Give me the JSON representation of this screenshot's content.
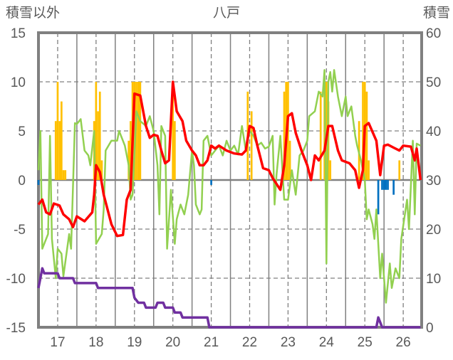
{
  "chart_data": {
    "type": "bar+line",
    "title": "八戸",
    "ylabel_left": "積雪以外",
    "ylabel_right": "積雪",
    "ylim_left": [
      -15,
      15
    ],
    "ylim_right": [
      0,
      60
    ],
    "xlim": [
      16.5,
      26.48
    ],
    "yticks_left": [
      "15",
      "10",
      "5",
      "0",
      "-5",
      "-10",
      "-15"
    ],
    "yticks_right": [
      "60",
      "50",
      "40",
      "30",
      "20",
      "10",
      "0"
    ],
    "xticks": [
      "17",
      "18",
      "19",
      "20",
      "21",
      "22",
      "23",
      "24",
      "25",
      "26"
    ],
    "colors": {
      "red": "#ff0000",
      "green": "#92d050",
      "orange": "#ffc000",
      "blue": "#0070c0",
      "purple": "#7030a0",
      "frame": "#808080"
    },
    "series": [
      {
        "name": "orange-bars",
        "axis": "left",
        "type": "bar",
        "color": "#ffc000",
        "points": [
          [
            16.95,
            6
          ],
          [
            17.0,
            10
          ],
          [
            17.05,
            6
          ],
          [
            17.1,
            8
          ],
          [
            17.15,
            1
          ],
          [
            17.2,
            1
          ],
          [
            17.95,
            6
          ],
          [
            18.0,
            10
          ],
          [
            18.05,
            7
          ],
          [
            18.1,
            9
          ],
          [
            18.15,
            2
          ],
          [
            18.85,
            4
          ],
          [
            18.9,
            6
          ],
          [
            18.95,
            10
          ],
          [
            19.0,
            10
          ],
          [
            19.05,
            10
          ],
          [
            19.1,
            10
          ],
          [
            19.15,
            10
          ],
          [
            20.0,
            10
          ],
          [
            20.05,
            6
          ],
          [
            21.95,
            9
          ],
          [
            22.05,
            7
          ],
          [
            22.9,
            9
          ],
          [
            22.95,
            10
          ],
          [
            23.0,
            10
          ],
          [
            23.05,
            4
          ],
          [
            23.85,
            9
          ],
          [
            23.95,
            10
          ],
          [
            24.0,
            10
          ],
          [
            24.05,
            8
          ],
          [
            24.1,
            2
          ],
          [
            24.85,
            6
          ],
          [
            24.95,
            10
          ],
          [
            25.0,
            10
          ],
          [
            25.05,
            9
          ],
          [
            25.1,
            2
          ],
          [
            25.9,
            2
          ]
        ]
      },
      {
        "name": "blue-bars",
        "axis": "left",
        "type": "bar",
        "color": "#0070c0",
        "points": [
          [
            16.5,
            -0.5
          ],
          [
            21.0,
            -0.5
          ],
          [
            25.35,
            -3.5
          ],
          [
            25.45,
            -1
          ],
          [
            25.5,
            -1
          ],
          [
            25.55,
            -1
          ],
          [
            25.6,
            -1
          ],
          [
            25.75,
            -1.5
          ]
        ]
      },
      {
        "name": "green-line",
        "axis": "left",
        "type": "line",
        "color": "#92d050",
        "points": [
          [
            16.5,
            1
          ],
          [
            16.55,
            5
          ],
          [
            16.6,
            -7
          ],
          [
            16.7,
            -6
          ],
          [
            16.75,
            -5.5
          ],
          [
            16.8,
            4.5
          ],
          [
            16.85,
            -6
          ],
          [
            16.95,
            -10
          ],
          [
            17.0,
            -7
          ],
          [
            17.1,
            -7.5
          ],
          [
            17.15,
            -9.8
          ],
          [
            17.3,
            -5.5
          ],
          [
            17.35,
            -7
          ],
          [
            17.45,
            5.8
          ],
          [
            17.5,
            5.7
          ],
          [
            17.6,
            6.2
          ],
          [
            17.7,
            3
          ],
          [
            17.8,
            2.5
          ],
          [
            17.85,
            1.5
          ],
          [
            17.95,
            5
          ],
          [
            18.0,
            -6.5
          ],
          [
            18.15,
            -5.5
          ],
          [
            18.2,
            -3
          ],
          [
            18.25,
            3
          ],
          [
            18.4,
            4
          ],
          [
            18.55,
            4
          ],
          [
            18.6,
            5
          ],
          [
            18.75,
            3.5
          ],
          [
            18.85,
            1.5
          ],
          [
            18.9,
            -2
          ],
          [
            18.95,
            -1.5
          ],
          [
            19.05,
            7
          ],
          [
            19.15,
            6
          ],
          [
            19.3,
            5.5
          ],
          [
            19.4,
            6.5
          ],
          [
            19.5,
            5
          ],
          [
            19.6,
            1.5
          ],
          [
            19.65,
            -3.5
          ],
          [
            19.7,
            5.5
          ],
          [
            19.8,
            4.5
          ],
          [
            19.85,
            -7
          ],
          [
            19.95,
            -1
          ],
          [
            20.05,
            -6.5
          ],
          [
            20.1,
            -4
          ],
          [
            20.2,
            -2.5
          ],
          [
            20.3,
            -3.5
          ],
          [
            20.4,
            -1.5
          ],
          [
            20.5,
            3
          ],
          [
            20.55,
            1.5
          ],
          [
            20.6,
            -2.5
          ],
          [
            20.7,
            -3.5
          ],
          [
            20.75,
            -3
          ],
          [
            20.8,
            4
          ],
          [
            20.9,
            4.5
          ],
          [
            21.0,
            2.5
          ],
          [
            21.1,
            3
          ],
          [
            21.2,
            3.5
          ],
          [
            21.3,
            2.5
          ],
          [
            21.4,
            4
          ],
          [
            21.5,
            3
          ],
          [
            21.6,
            3.5
          ],
          [
            21.7,
            2.6
          ],
          [
            21.8,
            5.5
          ],
          [
            21.9,
            3
          ],
          [
            22.0,
            5
          ],
          [
            22.1,
            4.5
          ],
          [
            22.2,
            3.5
          ],
          [
            22.3,
            3.8
          ],
          [
            22.4,
            3.2
          ],
          [
            22.5,
            3.4
          ],
          [
            22.6,
            4.5
          ],
          [
            22.65,
            -2.5
          ],
          [
            22.7,
            0.5
          ],
          [
            22.8,
            4.5
          ],
          [
            22.9,
            -2
          ],
          [
            23.0,
            -2
          ],
          [
            23.1,
            1
          ],
          [
            23.2,
            -1.5
          ],
          [
            23.3,
            2.5
          ],
          [
            23.4,
            3
          ],
          [
            23.5,
            4
          ],
          [
            23.55,
            6.5
          ],
          [
            23.7,
            7
          ],
          [
            23.8,
            9
          ],
          [
            23.9,
            8.5
          ],
          [
            23.95,
            11.2
          ],
          [
            24.0,
            -8.5
          ],
          [
            24.05,
            10
          ],
          [
            24.1,
            11
          ],
          [
            24.15,
            9
          ],
          [
            24.2,
            11.2
          ],
          [
            24.3,
            8.5
          ],
          [
            24.4,
            6.5
          ],
          [
            24.5,
            8.5
          ],
          [
            24.55,
            6.5
          ],
          [
            24.65,
            7.5
          ],
          [
            24.75,
            4.5
          ],
          [
            24.8,
            3.5
          ],
          [
            24.9,
            2
          ],
          [
            25.0,
            0
          ],
          [
            25.05,
            -4
          ],
          [
            25.1,
            -3
          ],
          [
            25.2,
            -4.5
          ],
          [
            25.25,
            -6
          ],
          [
            25.3,
            -3
          ],
          [
            25.4,
            -10
          ],
          [
            25.45,
            -7.5
          ],
          [
            25.55,
            -12.5
          ],
          [
            25.65,
            -8.5
          ],
          [
            25.7,
            -11
          ],
          [
            25.8,
            -9
          ],
          [
            25.9,
            -10
          ],
          [
            25.95,
            -6
          ],
          [
            26.1,
            -2
          ],
          [
            26.15,
            -5
          ],
          [
            26.25,
            4
          ],
          [
            26.3,
            -3.5
          ],
          [
            26.35,
            3.7
          ],
          [
            26.45,
            3.5
          ]
        ]
      },
      {
        "name": "red-line",
        "axis": "left",
        "type": "line",
        "color": "#ff0000",
        "points": [
          [
            16.5,
            -2.5
          ],
          [
            16.6,
            -2
          ],
          [
            16.7,
            -3.3
          ],
          [
            16.8,
            -3.5
          ],
          [
            16.9,
            -2.4
          ],
          [
            17.05,
            -2.6
          ],
          [
            17.15,
            -3.5
          ],
          [
            17.3,
            -4
          ],
          [
            17.4,
            -4.8
          ],
          [
            17.5,
            -3.7
          ],
          [
            17.7,
            -4.2
          ],
          [
            17.9,
            -3.3
          ],
          [
            17.95,
            -1.5
          ],
          [
            18.0,
            1.5
          ],
          [
            18.1,
            0.8
          ],
          [
            18.2,
            -1.5
          ],
          [
            18.4,
            -4.5
          ],
          [
            18.55,
            -5.7
          ],
          [
            18.7,
            -5.6
          ],
          [
            18.8,
            -2
          ],
          [
            18.9,
            -1
          ],
          [
            19.0,
            8.8
          ],
          [
            19.15,
            8.6
          ],
          [
            19.3,
            5.5
          ],
          [
            19.4,
            4.3
          ],
          [
            19.5,
            4.6
          ],
          [
            19.6,
            4.5
          ],
          [
            19.7,
            3
          ],
          [
            19.8,
            1.7
          ],
          [
            19.9,
            2
          ],
          [
            20.0,
            10
          ],
          [
            20.1,
            7
          ],
          [
            20.25,
            6
          ],
          [
            20.35,
            4
          ],
          [
            20.5,
            3
          ],
          [
            20.6,
            2.5
          ],
          [
            20.7,
            1.5
          ],
          [
            20.8,
            1.5
          ],
          [
            20.9,
            2
          ],
          [
            21.0,
            3.5
          ],
          [
            21.1,
            3.2
          ],
          [
            21.2,
            3.5
          ],
          [
            21.4,
            3
          ],
          [
            21.6,
            2.7
          ],
          [
            21.8,
            2.6
          ],
          [
            21.9,
            3
          ],
          [
            22.0,
            5.5
          ],
          [
            22.1,
            5.3
          ],
          [
            22.2,
            3.5
          ],
          [
            22.35,
            1.2
          ],
          [
            22.5,
            1
          ],
          [
            22.6,
            0.2
          ],
          [
            22.8,
            -1
          ],
          [
            22.9,
            1.5
          ],
          [
            23.0,
            6.5
          ],
          [
            23.1,
            6.8
          ],
          [
            23.2,
            4.8
          ],
          [
            23.35,
            3
          ],
          [
            23.5,
            1.5
          ],
          [
            23.6,
            0
          ],
          [
            23.7,
            2.5
          ],
          [
            23.8,
            2
          ],
          [
            23.95,
            3
          ],
          [
            24.05,
            5.5
          ],
          [
            24.15,
            5.5
          ],
          [
            24.3,
            3
          ],
          [
            24.4,
            2
          ],
          [
            24.6,
            1.7
          ],
          [
            24.75,
            1
          ],
          [
            24.85,
            -0.8
          ],
          [
            24.95,
            1
          ],
          [
            25.0,
            5.5
          ],
          [
            25.1,
            5.8
          ],
          [
            25.3,
            4
          ],
          [
            25.4,
            0.5
          ],
          [
            25.5,
            3.5
          ],
          [
            25.6,
            3.6
          ],
          [
            25.75,
            3.3
          ],
          [
            25.9,
            3
          ],
          [
            26.0,
            3.5
          ],
          [
            26.2,
            3.4
          ],
          [
            26.3,
            2
          ],
          [
            26.35,
            3.2
          ],
          [
            26.45,
            0
          ]
        ]
      },
      {
        "name": "purple-line",
        "axis": "right",
        "type": "line",
        "color": "#7030a0",
        "points": [
          [
            16.5,
            8
          ],
          [
            16.6,
            12
          ],
          [
            16.65,
            11
          ],
          [
            17.0,
            11
          ],
          [
            17.05,
            10
          ],
          [
            17.4,
            10
          ],
          [
            17.45,
            9
          ],
          [
            18.0,
            9
          ],
          [
            18.05,
            8
          ],
          [
            18.95,
            8
          ],
          [
            19.0,
            6
          ],
          [
            19.1,
            5
          ],
          [
            19.25,
            5
          ],
          [
            19.3,
            4
          ],
          [
            19.55,
            4
          ],
          [
            19.6,
            5
          ],
          [
            19.75,
            5
          ],
          [
            19.8,
            4
          ],
          [
            20.0,
            4
          ],
          [
            20.05,
            3
          ],
          [
            20.2,
            3
          ],
          [
            20.25,
            2
          ],
          [
            20.9,
            2
          ],
          [
            20.95,
            0
          ],
          [
            25.3,
            0
          ],
          [
            25.35,
            2
          ],
          [
            25.45,
            0
          ],
          [
            26.45,
            0
          ]
        ]
      }
    ]
  }
}
